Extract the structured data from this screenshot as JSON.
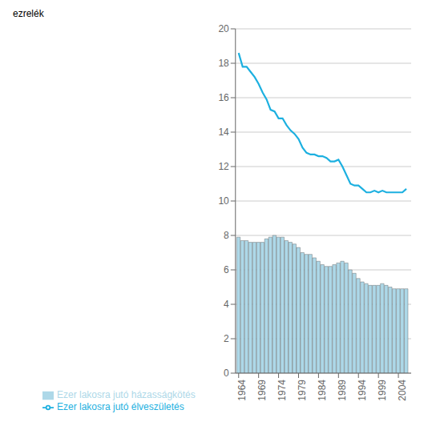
{
  "chart_data": {
    "type": "bar",
    "y_label": "ezrelék",
    "x": [
      1964,
      1965,
      1966,
      1967,
      1968,
      1969,
      1970,
      1971,
      1972,
      1973,
      1974,
      1975,
      1976,
      1977,
      1978,
      1979,
      1980,
      1981,
      1982,
      1983,
      1984,
      1985,
      1986,
      1987,
      1988,
      1989,
      1990,
      1991,
      1992,
      1993,
      1994,
      1995,
      1996,
      1997,
      1998,
      1999,
      2000,
      2001,
      2002,
      2003,
      2004,
      2005,
      2006
    ],
    "series": [
      {
        "name": "Ezer lakosra jutó házasságkötés",
        "type": "bar",
        "color": "#add8e8",
        "values": [
          7.9,
          7.7,
          7.7,
          7.6,
          7.6,
          7.6,
          7.6,
          7.8,
          7.9,
          8.0,
          7.9,
          7.9,
          7.7,
          7.6,
          7.5,
          7.3,
          7.0,
          6.9,
          6.9,
          6.7,
          6.5,
          6.3,
          6.2,
          6.2,
          6.3,
          6.4,
          6.5,
          6.4,
          6.0,
          5.8,
          5.5,
          5.3,
          5.2,
          5.1,
          5.1,
          5.1,
          5.2,
          5.1,
          5.0,
          4.9,
          4.9,
          4.9,
          4.9
        ]
      },
      {
        "name": "Ezer lakosra jutó élveszületés",
        "type": "line",
        "color": "#1db0e0",
        "values": [
          18.6,
          17.8,
          17.8,
          17.5,
          17.2,
          16.8,
          16.3,
          15.9,
          15.3,
          15.2,
          14.8,
          14.8,
          14.4,
          14.1,
          13.9,
          13.6,
          13.1,
          12.8,
          12.7,
          12.7,
          12.6,
          12.6,
          12.5,
          12.3,
          12.3,
          12.4,
          12.0,
          11.5,
          11.0,
          10.9,
          10.9,
          10.7,
          10.5,
          10.5,
          10.6,
          10.5,
          10.6,
          10.5,
          10.5,
          10.5,
          10.5,
          10.5,
          10.7
        ]
      }
    ],
    "xlim": [
      1963.2,
      2007.2
    ],
    "xticks": [
      1964,
      1969,
      1974,
      1979,
      1984,
      1989,
      1994,
      1999,
      2004
    ],
    "ylim": [
      0,
      20
    ],
    "yticks": [
      0,
      2,
      4,
      6,
      8,
      10,
      12,
      14,
      16,
      18,
      20
    ],
    "grid": "y",
    "legend": "bottom"
  }
}
